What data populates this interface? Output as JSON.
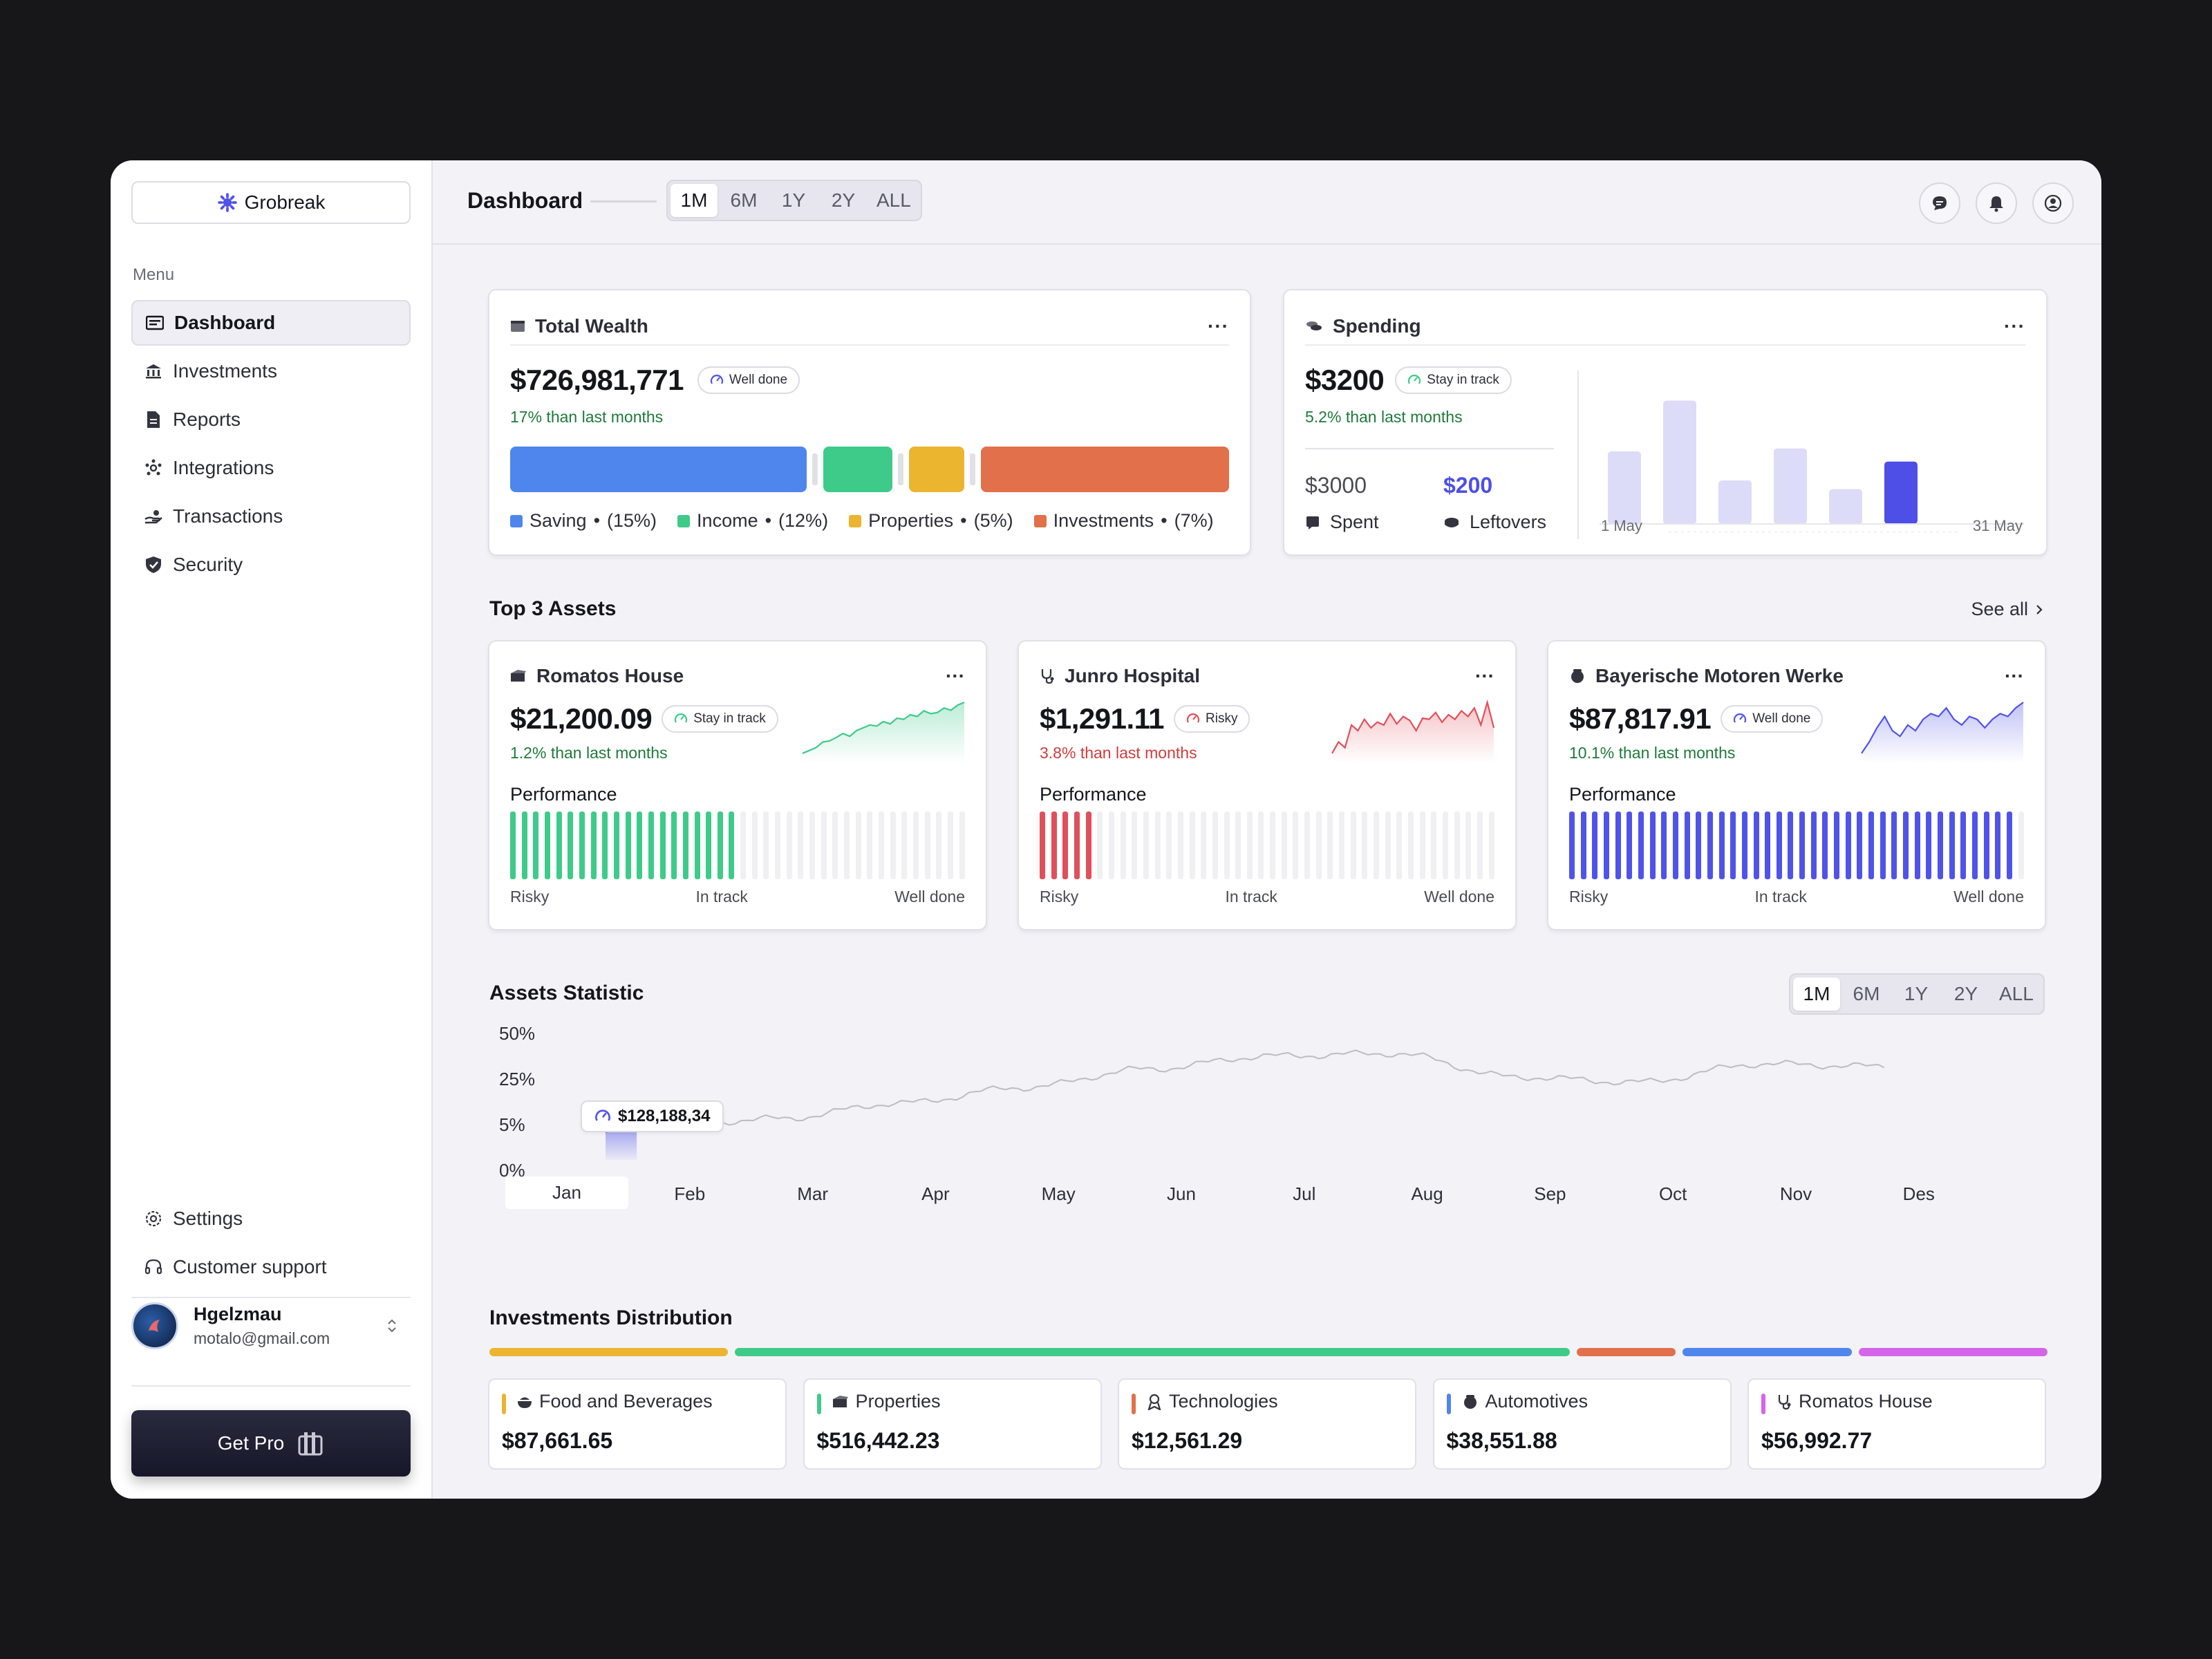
{
  "sidebar": {
    "brand": "Grobreak",
    "menu_title": "Menu",
    "items": [
      {
        "label": "Dashboard",
        "icon": "dashboard-icon",
        "active": true
      },
      {
        "label": "Investments",
        "icon": "bank-icon"
      },
      {
        "label": "Reports",
        "icon": "report-icon"
      },
      {
        "label": "Integrations",
        "icon": "integrations-icon"
      },
      {
        "label": "Transactions",
        "icon": "transactions-icon"
      },
      {
        "label": "Security",
        "icon": "shield-icon"
      }
    ],
    "bottom_items": [
      {
        "label": "Settings",
        "icon": "gear-icon"
      },
      {
        "label": "Customer support",
        "icon": "headset-icon"
      }
    ],
    "user": {
      "name": "Hgelzmau",
      "email": "motalo@gmail.com"
    },
    "get_pro": "Get Pro"
  },
  "header": {
    "title": "Dashboard",
    "ranges": [
      "1M",
      "6M",
      "1Y",
      "2Y",
      "ALL"
    ],
    "active_range": "1M",
    "icons": [
      "chat-icon",
      "bell-icon",
      "user-circle-icon"
    ]
  },
  "total_wealth": {
    "title": "Total Wealth",
    "value": "$726,981,771",
    "badge": "Well done",
    "change": "17% than last months",
    "segments": [
      {
        "label": "Saving",
        "pct": "(15%)",
        "color": "#4f86ee",
        "share": 0.43
      },
      {
        "label": "Income",
        "pct": "(12%)",
        "color": "#3ecb8a",
        "share": 0.1
      },
      {
        "label": "Properties",
        "pct": "(5%)",
        "color": "#ebb530",
        "share": 0.08
      },
      {
        "label": "Investments",
        "pct": "(7%)",
        "color": "#e2704a",
        "share": 0.36
      }
    ]
  },
  "spending": {
    "title": "Spending",
    "value": "$3200",
    "badge": "Stay in track",
    "change": "5.2% than last months",
    "spent_value": "$3000",
    "spent_label": "Spent",
    "leftover_value": "$200",
    "leftover_label": "Leftovers",
    "bars": [
      0.5,
      0.85,
      0.3,
      0.52,
      0.24,
      0.43
    ],
    "highlight_index": 5,
    "start_label": "1 May",
    "end_label": "31 May"
  },
  "top_assets": {
    "title": "Top 3 Assets",
    "see_all": "See all",
    "performance_label": "Performance",
    "scale": [
      "Risky",
      "In track",
      "Well done"
    ],
    "items": [
      {
        "name": "Romatos House",
        "icon": "house-icon",
        "value": "$21,200.09",
        "badge": "Stay in track",
        "change": "1.2% than last months",
        "trend": "up",
        "color": "#3ecb8a",
        "filled": 0.5,
        "spark": [
          0.1,
          0.15,
          0.2,
          0.3,
          0.32,
          0.38,
          0.45,
          0.4,
          0.5,
          0.55,
          0.6,
          0.58,
          0.66,
          0.62,
          0.72,
          0.7,
          0.78,
          0.75,
          0.85,
          0.8,
          0.82,
          0.9,
          0.86,
          0.95,
          1.0
        ]
      },
      {
        "name": "Junro Hospital",
        "icon": "stethoscope-icon",
        "value": "$1,291.11",
        "badge": "Risky",
        "change": "3.8% than last months",
        "trend": "down",
        "color": "#e0505a",
        "filled": 0.13,
        "spark": [
          0.1,
          0.3,
          0.2,
          0.6,
          0.5,
          0.7,
          0.55,
          0.65,
          0.6,
          0.8,
          0.62,
          0.75,
          0.68,
          0.5,
          0.72,
          0.7,
          0.82,
          0.65,
          0.78,
          0.7,
          0.85,
          0.75,
          0.9,
          0.6,
          1.0,
          0.55
        ]
      },
      {
        "name": "Bayerische Motoren Werke",
        "icon": "car-icon",
        "value": "$87,817.91",
        "badge": "Well done",
        "change": "10.1% than last months",
        "trend": "up",
        "color": "#5053e8",
        "filled": 0.97,
        "spark": [
          0.1,
          0.3,
          0.55,
          0.75,
          0.5,
          0.4,
          0.6,
          0.5,
          0.7,
          0.8,
          0.75,
          0.9,
          0.7,
          0.6,
          0.75,
          0.7,
          0.55,
          0.7,
          0.8,
          0.75,
          0.9,
          1.0
        ]
      }
    ]
  },
  "assets_statistic": {
    "title": "Assets Statistic",
    "ranges": [
      "1M",
      "6M",
      "1Y",
      "2Y",
      "ALL"
    ],
    "active_range": "1M",
    "tooltip": "$128,188,34"
  },
  "chart_data": {
    "type": "line",
    "title": "Assets Statistic",
    "xlabel": "",
    "ylabel": "",
    "x": [
      "Jan",
      "Feb",
      "Mar",
      "Apr",
      "May",
      "Jun",
      "Jul",
      "Aug",
      "Sep",
      "Oct",
      "Nov",
      "Des"
    ],
    "y_ticks": [
      "50%",
      "25%",
      "5%",
      "0%"
    ],
    "highlighted_x": "Jan",
    "tooltip": "$128,188,34",
    "series": [
      {
        "values": [
          0.6,
          8,
          11,
          17,
          23,
          30,
          35,
          36,
          27,
          25,
          32,
          31
        ],
        "color": "#bcbcc4",
        "highlight_color": "#5053e8"
      }
    ],
    "grid": false
  },
  "distribution": {
    "title": "Investments Distribution",
    "items": [
      {
        "label": "Food and Beverages",
        "value": "$87,661.65",
        "color": "#ebb530",
        "icon": "food-icon",
        "share": 0.12
      },
      {
        "label": "Properties",
        "value": "$516,442.23",
        "color": "#3ecb8a",
        "icon": "house-icon",
        "share": 0.42
      },
      {
        "label": "Technologies",
        "value": "$12,561.29",
        "color": "#e2704a",
        "icon": "tech-icon",
        "share": 0.05
      },
      {
        "label": "Automotives",
        "value": "$38,551.88",
        "color": "#4f86ee",
        "icon": "car-icon",
        "share": 0.085
      },
      {
        "label": "Romatos House",
        "value": "$56,992.77",
        "color": "#d465e8",
        "icon": "stethoscope-icon",
        "share": 0.095
      }
    ]
  }
}
